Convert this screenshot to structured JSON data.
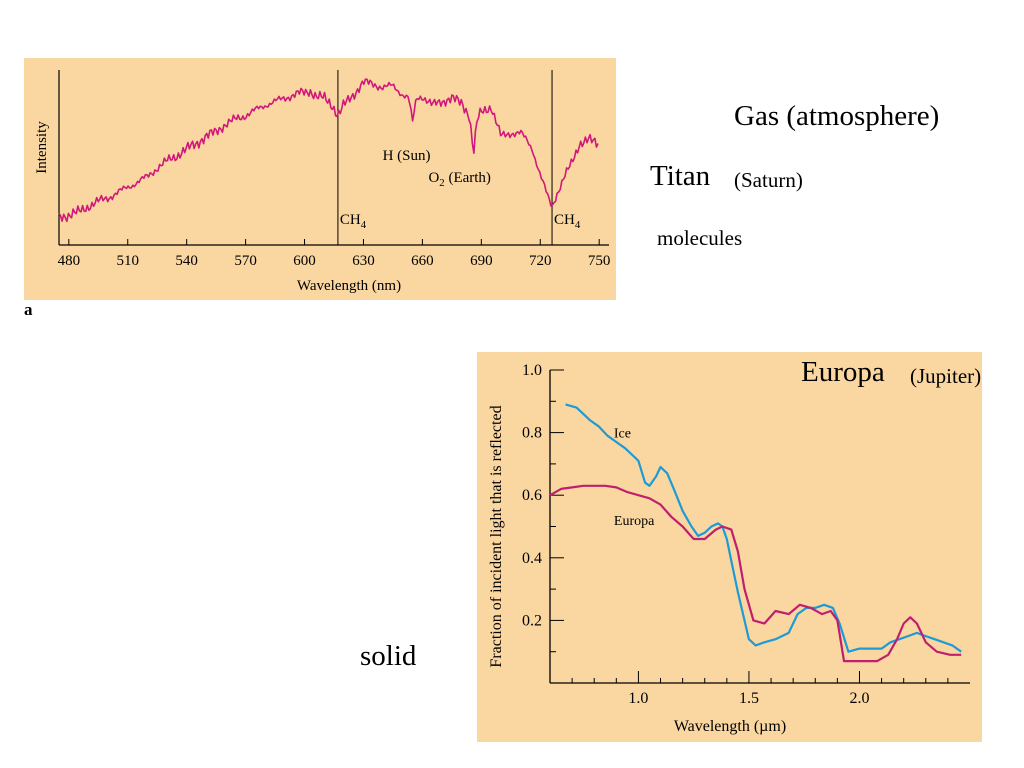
{
  "slide": {
    "panel_label": "a",
    "gas_label": "Gas (atmosphere)",
    "titan_label": "Titan",
    "titan_host": "(Saturn)",
    "molecules_label": "molecules",
    "europa_label": "Europa",
    "europa_host": "(Jupiter)",
    "solid_label": "solid"
  },
  "colors": {
    "panel_bg": "#fad7a0",
    "titan_line": "#d0187a",
    "ice_line": "#1c9bd6",
    "europa_line": "#bf1f6e"
  },
  "chart_data": [
    {
      "type": "line",
      "xlabel": "Wavelength (nm)",
      "ylabel": "Intensity",
      "xlim": [
        475,
        755
      ],
      "ylim": [
        0,
        100
      ],
      "xticks": [
        480,
        510,
        540,
        570,
        600,
        630,
        660,
        690,
        720,
        750
      ],
      "grid": false,
      "vertical_lines": [
        {
          "x": 617,
          "label": "CH",
          "sub": "4"
        },
        {
          "x": 726,
          "label": "CH",
          "sub": "4"
        }
      ],
      "annotations": [
        {
          "text": "H (Sun)",
          "x": 655
        },
        {
          "text": "O",
          "sub": "2",
          "suffix": " (Earth)",
          "x": 686
        }
      ],
      "series": [
        {
          "x": [
            475,
            480,
            485,
            490,
            495,
            500,
            505,
            510,
            515,
            520,
            525,
            530,
            535,
            540,
            545,
            550,
            555,
            560,
            565,
            570,
            575,
            580,
            585,
            590,
            595,
            598,
            600,
            603,
            606,
            610,
            614,
            617,
            620,
            625,
            630,
            635,
            640,
            645,
            650,
            653,
            655,
            657,
            660,
            665,
            670,
            675,
            680,
            684,
            686,
            688,
            690,
            695,
            700,
            705,
            710,
            713,
            716,
            720,
            724,
            726,
            728,
            732,
            736,
            740,
            745,
            750
          ],
          "values": [
            16,
            17,
            19,
            22,
            25,
            27,
            30,
            33,
            36,
            39,
            44,
            48,
            51,
            55,
            58,
            62,
            65,
            69,
            72,
            74,
            77,
            80,
            82,
            84,
            86,
            87,
            87,
            88,
            85,
            84,
            80,
            74,
            80,
            86,
            93,
            92,
            90,
            91,
            86,
            84,
            70,
            84,
            85,
            80,
            82,
            84,
            81,
            74,
            52,
            72,
            76,
            79,
            62,
            64,
            64,
            60,
            55,
            40,
            27,
            22,
            28,
            38,
            47,
            58,
            60,
            58
          ]
        }
      ]
    },
    {
      "type": "line",
      "xlabel": "Wavelength (µm)",
      "ylabel": "Fraction of incident light that is reflected",
      "xlim": [
        0.6,
        2.5
      ],
      "ylim": [
        0,
        1.0
      ],
      "yticks": [
        0.2,
        0.4,
        0.6,
        0.8,
        1.0
      ],
      "xticks": [
        1.0,
        1.5,
        2.0
      ],
      "grid": false,
      "series": [
        {
          "name": "Ice",
          "x": [
            0.67,
            0.72,
            0.75,
            0.78,
            0.82,
            0.86,
            0.9,
            0.94,
            0.97,
            1.0,
            1.03,
            1.05,
            1.08,
            1.1,
            1.13,
            1.16,
            1.2,
            1.24,
            1.27,
            1.3,
            1.33,
            1.36,
            1.38,
            1.4,
            1.42,
            1.45,
            1.48,
            1.5,
            1.53,
            1.57,
            1.62,
            1.68,
            1.72,
            1.76,
            1.8,
            1.84,
            1.88,
            1.91,
            1.95,
            2.0,
            2.05,
            2.1,
            2.14,
            2.18,
            2.22,
            2.26,
            2.3,
            2.34,
            2.38,
            2.42,
            2.46
          ],
          "values": [
            0.89,
            0.88,
            0.86,
            0.84,
            0.82,
            0.79,
            0.77,
            0.75,
            0.73,
            0.71,
            0.64,
            0.63,
            0.66,
            0.69,
            0.67,
            0.62,
            0.55,
            0.5,
            0.47,
            0.48,
            0.5,
            0.51,
            0.5,
            0.46,
            0.39,
            0.29,
            0.2,
            0.14,
            0.12,
            0.13,
            0.14,
            0.16,
            0.22,
            0.24,
            0.24,
            0.25,
            0.24,
            0.19,
            0.1,
            0.11,
            0.11,
            0.11,
            0.13,
            0.14,
            0.15,
            0.16,
            0.15,
            0.14,
            0.13,
            0.12,
            0.1
          ]
        },
        {
          "name": "Europa",
          "x": [
            0.6,
            0.65,
            0.7,
            0.75,
            0.8,
            0.85,
            0.9,
            0.95,
            1.0,
            1.05,
            1.1,
            1.15,
            1.2,
            1.25,
            1.3,
            1.35,
            1.38,
            1.42,
            1.45,
            1.48,
            1.52,
            1.57,
            1.62,
            1.68,
            1.73,
            1.78,
            1.83,
            1.87,
            1.9,
            1.93,
            2.0,
            2.08,
            2.13,
            2.17,
            2.2,
            2.23,
            2.26,
            2.3,
            2.35,
            2.41,
            2.46
          ],
          "values": [
            0.6,
            0.62,
            0.625,
            0.63,
            0.63,
            0.63,
            0.625,
            0.61,
            0.6,
            0.59,
            0.57,
            0.53,
            0.5,
            0.46,
            0.46,
            0.49,
            0.5,
            0.49,
            0.42,
            0.3,
            0.2,
            0.19,
            0.23,
            0.22,
            0.25,
            0.24,
            0.22,
            0.23,
            0.2,
            0.07,
            0.07,
            0.07,
            0.09,
            0.14,
            0.19,
            0.21,
            0.19,
            0.13,
            0.1,
            0.09,
            0.09
          ]
        }
      ],
      "annotations": [
        {
          "text": "Ice",
          "x": 0.88,
          "y": 0.8
        },
        {
          "text": "Europa",
          "x": 0.88,
          "y": 0.52
        }
      ]
    }
  ]
}
